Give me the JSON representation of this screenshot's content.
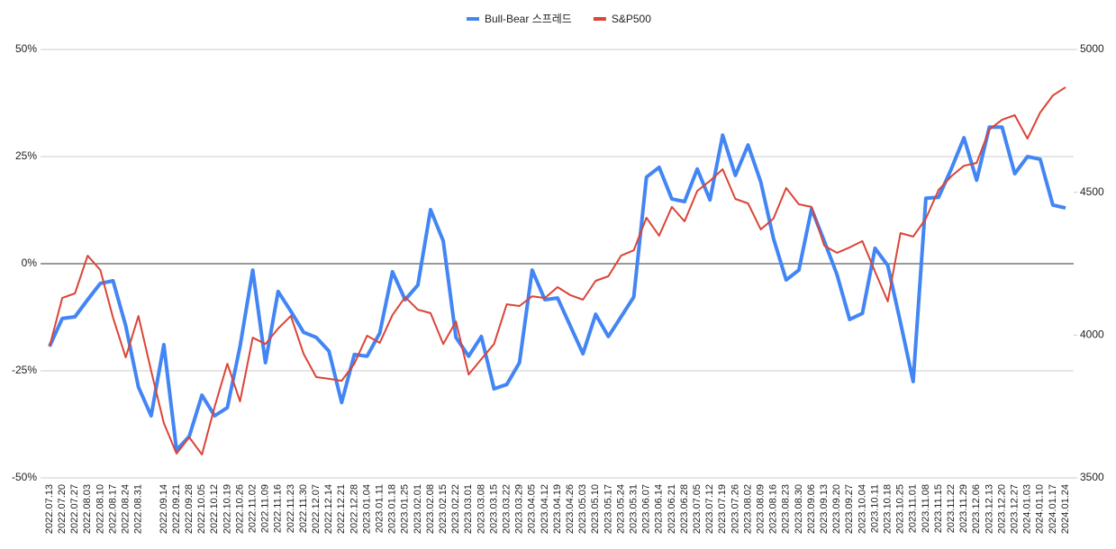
{
  "chart_data": {
    "type": "line",
    "categories": [
      "2022.07.13",
      "2022.07.20",
      "2022.07.27",
      "2022.08.03",
      "2022.08.10",
      "2022.08.17",
      "2022.08.24",
      "2022.08.31",
      null,
      "2022.09.14",
      "2022.09.21",
      "2022.09.28",
      "2022.10.05",
      "2022.10.12",
      "2022.10.19",
      "2022.10.26",
      "2022.11.02",
      "2022.11.09",
      "2022.11.16",
      "2022.11.23",
      "2022.11.30",
      "2022.12.07",
      "2022.12.14",
      "2022.12.21",
      "2022.12.28",
      "2023.01.04",
      "2023.01.11",
      "2023.01.18",
      "2023.01.25",
      "2023.02.01",
      "2023.02.08",
      "2023.02.15",
      "2023.02.22",
      "2023.03.01",
      "2023.03.08",
      "2023.03.15",
      "2023.03.22",
      "2023.03.29",
      "2023.04.05",
      "2023.04.12",
      "2023.04.19",
      "2023.04.26",
      "2023.05.03",
      "2023.05.10",
      "2023.05.17",
      "2023.05.24",
      "2023.05.31",
      "2023.06.07",
      "2023.06.14",
      "2023.06.21",
      "2023.06.28",
      "2023.07.05",
      "2023.07.12",
      "2023.07.19",
      "2023.07.26",
      "2023.08.02",
      "2023.08.09",
      "2023.08.16",
      "2023.08.23",
      "2023.08.30",
      "2023.09.06",
      "2023.09.13",
      "2023.09.20",
      "2023.09.27",
      "2023.10.04",
      "2023.10.11",
      "2023.10.18",
      "2023.10.25",
      "2023.11.01",
      "2023.11.08",
      "2023.11.15",
      "2023.11.22",
      "2023.11.29",
      "2023.12.06",
      "2023.12.13",
      "2023.12.20",
      "2023.12.27",
      "2024.01.03",
      "2024.01.10",
      "2024.01.17",
      "2024.01.24"
    ],
    "series": [
      {
        "name": "Bull-Bear 스프레드",
        "color": "#4285f4",
        "axis": "y",
        "values": [
          -19.3,
          -12.8,
          -12.4,
          -8.4,
          -4.6,
          -4.0,
          -14.5,
          -28.8,
          -35.5,
          -18.9,
          -43.5,
          -40.3,
          -30.7,
          -35.5,
          -33.6,
          -19.3,
          -1.5,
          -23.1,
          -6.5,
          -11.1,
          -16,
          -17.2,
          -20.4,
          -32.4,
          -21.2,
          -21.6,
          -16.2,
          -1.9,
          -8.4,
          -5,
          12.6,
          5.3,
          -17.2,
          -21.6,
          -17,
          -29.2,
          -28.2,
          -23.1,
          -1.5,
          -8.4,
          -8,
          -14.5,
          -21,
          -11.8,
          -17,
          -12.4,
          -7.8,
          20.2,
          22.5,
          15.1,
          14.5,
          22.1,
          14.9,
          30,
          20.6,
          27.7,
          19.1,
          5.9,
          -3.8,
          -1.5,
          12.8,
          5.3,
          -2.5,
          -13,
          -11.6,
          3.6,
          -0.4,
          -13.7,
          -27.5,
          15.3,
          15.5,
          22.1,
          29.4,
          19.5,
          31.9,
          31.9,
          21,
          25,
          24.4,
          13.7,
          13
        ]
      },
      {
        "name": "S&P500",
        "color": "#db4437",
        "axis": "y2",
        "values": [
          3960,
          4130,
          4146,
          4278,
          4228,
          4061,
          3922,
          4067,
          3875,
          3692,
          3585,
          3642,
          3582,
          3749,
          3900,
          3768,
          3991,
          3969,
          4023,
          4067,
          3935,
          3853,
          3847,
          3840,
          3900,
          3998,
          3973,
          4070,
          4133,
          4089,
          4077,
          3969,
          4048,
          3862,
          3916,
          3969,
          4108,
          4102,
          4136,
          4130,
          4168,
          4140,
          4124,
          4190,
          4206,
          4278,
          4297,
          4411,
          4348,
          4449,
          4398,
          4505,
          4540,
          4581,
          4477,
          4461,
          4370,
          4408,
          4515,
          4458,
          4449,
          4313,
          4288,
          4307,
          4329,
          4222,
          4118,
          4357,
          4345,
          4408,
          4508,
          4556,
          4593,
          4603,
          4720,
          4754,
          4770,
          4688,
          4779,
          4839,
          4868
        ]
      }
    ],
    "ylim": [
      -50,
      50
    ],
    "yticks": [
      {
        "value": -50,
        "label": "-50%"
      },
      {
        "value": -25,
        "label": "-25%"
      },
      {
        "value": 0,
        "label": "0%"
      },
      {
        "value": 25,
        "label": "25%"
      },
      {
        "value": 50,
        "label": "50%"
      }
    ],
    "y2lim": [
      3500,
      5000
    ],
    "y2ticks": [
      3500,
      4000,
      4500,
      5000
    ],
    "grid": true,
    "legend": "top"
  }
}
